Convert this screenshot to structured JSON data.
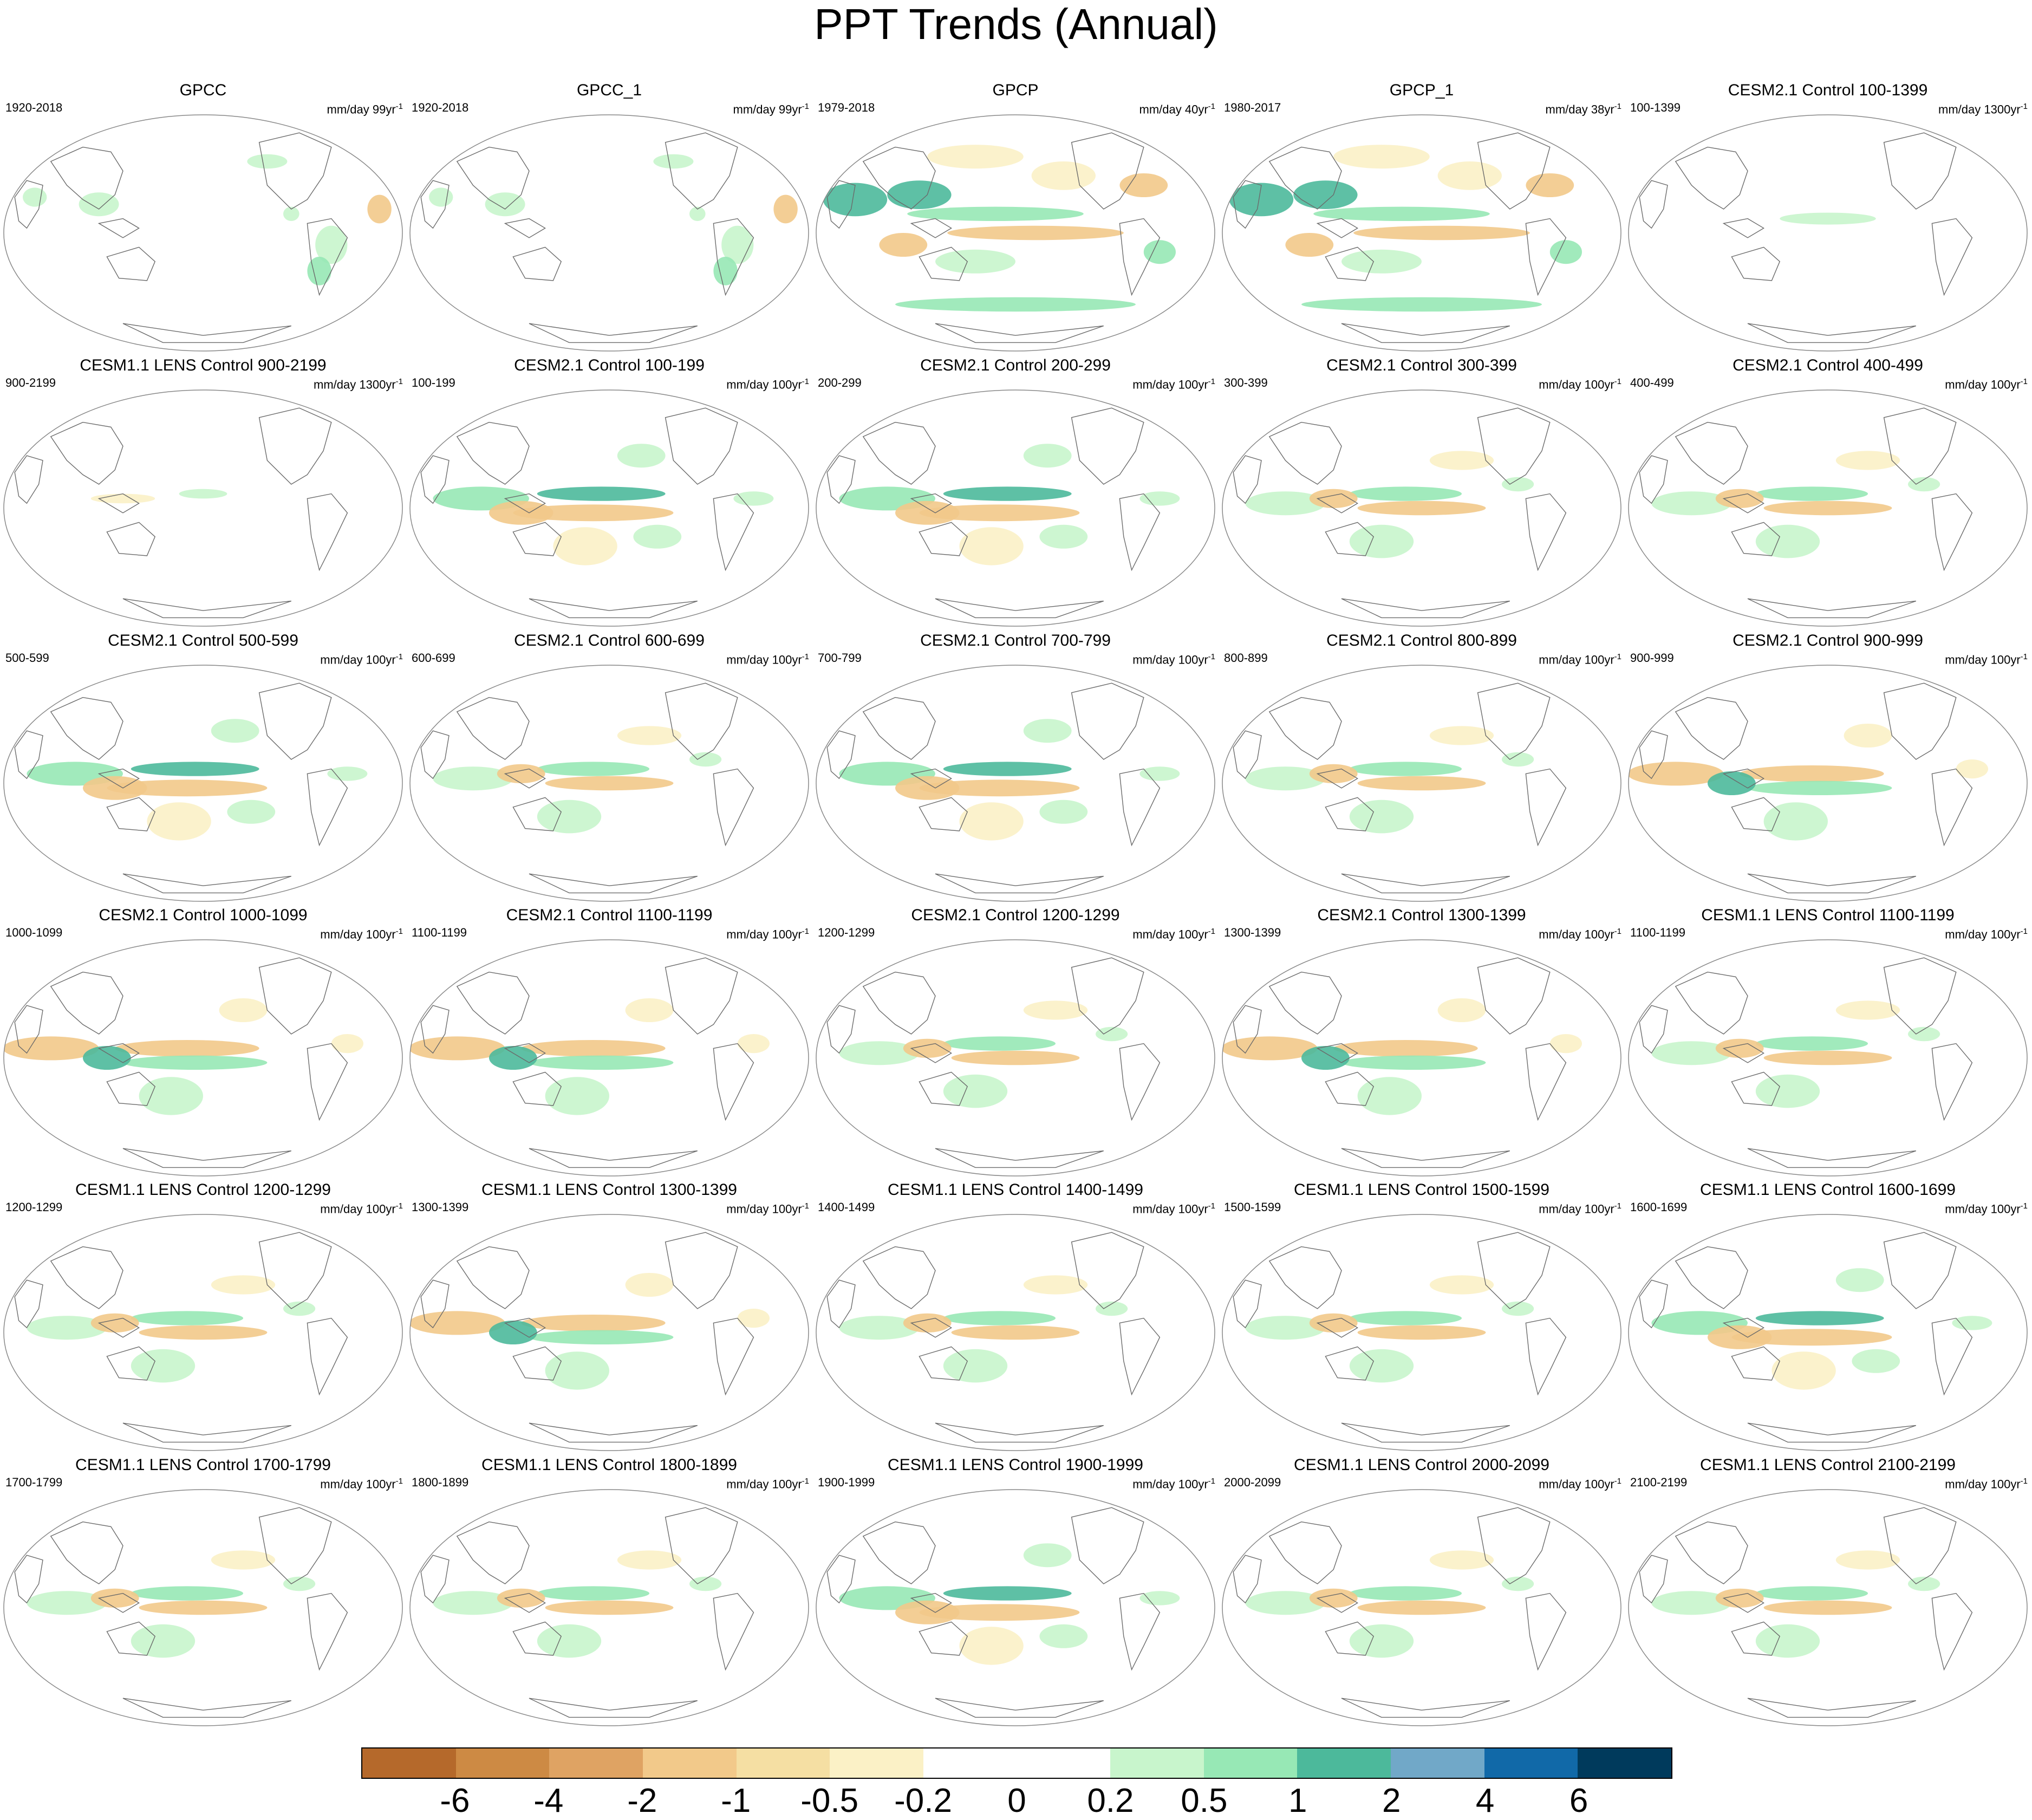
{
  "title": "PPT Trends (Annual)",
  "chart_data": {
    "type": "map-grid",
    "variable": "PPT Trends (Annual)",
    "panels": [
      {
        "title": "GPCC",
        "period": "1920-2018",
        "units": "mm/day 99yr",
        "units_exp": "-1",
        "pattern": "obs_sparse"
      },
      {
        "title": "GPCC_1",
        "period": "1920-2018",
        "units": "mm/day 99yr",
        "units_exp": "-1",
        "pattern": "obs_sparse"
      },
      {
        "title": "GPCP",
        "period": "1979-2018",
        "units": "mm/day 40yr",
        "units_exp": "-1",
        "pattern": "obs_strong"
      },
      {
        "title": "GPCP_1",
        "period": "1980-2017",
        "units": "mm/day 38yr",
        "units_exp": "-1",
        "pattern": "obs_strong"
      },
      {
        "title": "CESM2.1 Control 100-1399",
        "period": "100-1399",
        "units": "mm/day 1300yr",
        "units_exp": "-1",
        "pattern": "long_weak"
      },
      {
        "title": "CESM1.1 LENS Control 900-2199",
        "period": "900-2199",
        "units": "mm/day 1300yr",
        "units_exp": "-1",
        "pattern": "long_weaker"
      },
      {
        "title": "CESM2.1 Control 100-199",
        "period": "100-199",
        "units": "mm/day 100yr",
        "units_exp": "-1",
        "pattern": "enso_pos"
      },
      {
        "title": "CESM2.1 Control 200-299",
        "period": "200-299",
        "units": "mm/day 100yr",
        "units_exp": "-1",
        "pattern": "enso_pos"
      },
      {
        "title": "CESM2.1 Control 300-399",
        "period": "300-399",
        "units": "mm/day 100yr",
        "units_exp": "-1",
        "pattern": "mixed"
      },
      {
        "title": "CESM2.1 Control 400-499",
        "period": "400-499",
        "units": "mm/day 100yr",
        "units_exp": "-1",
        "pattern": "mixed"
      },
      {
        "title": "CESM2.1 Control 500-599",
        "period": "500-599",
        "units": "mm/day 100yr",
        "units_exp": "-1",
        "pattern": "enso_pos"
      },
      {
        "title": "CESM2.1 Control 600-699",
        "period": "600-699",
        "units": "mm/day 100yr",
        "units_exp": "-1",
        "pattern": "mixed"
      },
      {
        "title": "CESM2.1 Control 700-799",
        "period": "700-799",
        "units": "mm/day 100yr",
        "units_exp": "-1",
        "pattern": "enso_pos"
      },
      {
        "title": "CESM2.1 Control 800-899",
        "period": "800-899",
        "units": "mm/day 100yr",
        "units_exp": "-1",
        "pattern": "mixed"
      },
      {
        "title": "CESM2.1 Control 900-999",
        "period": "900-999",
        "units": "mm/day 100yr",
        "units_exp": "-1",
        "pattern": "enso_neg"
      },
      {
        "title": "CESM2.1 Control 1000-1099",
        "period": "1000-1099",
        "units": "mm/day 100yr",
        "units_exp": "-1",
        "pattern": "enso_neg"
      },
      {
        "title": "CESM2.1 Control 1100-1199",
        "period": "1100-1199",
        "units": "mm/day 100yr",
        "units_exp": "-1",
        "pattern": "enso_neg"
      },
      {
        "title": "CESM2.1 Control 1200-1299",
        "period": "1200-1299",
        "units": "mm/day 100yr",
        "units_exp": "-1",
        "pattern": "mixed"
      },
      {
        "title": "CESM2.1 Control 1300-1399",
        "period": "1300-1399",
        "units": "mm/day 100yr",
        "units_exp": "-1",
        "pattern": "enso_neg"
      },
      {
        "title": "CESM1.1 LENS Control 1100-1199",
        "period": "1100-1199",
        "units": "mm/day 100yr",
        "units_exp": "-1",
        "pattern": "mixed"
      },
      {
        "title": "CESM1.1 LENS Control 1200-1299",
        "period": "1200-1299",
        "units": "mm/day 100yr",
        "units_exp": "-1",
        "pattern": "mixed"
      },
      {
        "title": "CESM1.1 LENS Control 1300-1399",
        "period": "1300-1399",
        "units": "mm/day 100yr",
        "units_exp": "-1",
        "pattern": "enso_neg"
      },
      {
        "title": "CESM1.1 LENS Control 1400-1499",
        "period": "1400-1499",
        "units": "mm/day 100yr",
        "units_exp": "-1",
        "pattern": "mixed"
      },
      {
        "title": "CESM1.1 LENS Control 1500-1599",
        "period": "1500-1599",
        "units": "mm/day 100yr",
        "units_exp": "-1",
        "pattern": "mixed"
      },
      {
        "title": "CESM1.1 LENS Control 1600-1699",
        "period": "1600-1699",
        "units": "mm/day 100yr",
        "units_exp": "-1",
        "pattern": "enso_pos"
      },
      {
        "title": "CESM1.1 LENS Control 1700-1799",
        "period": "1700-1799",
        "units": "mm/day 100yr",
        "units_exp": "-1",
        "pattern": "mixed"
      },
      {
        "title": "CESM1.1 LENS Control 1800-1899",
        "period": "1800-1899",
        "units": "mm/day 100yr",
        "units_exp": "-1",
        "pattern": "mixed"
      },
      {
        "title": "CESM1.1 LENS Control 1900-1999",
        "period": "1900-1999",
        "units": "mm/day 100yr",
        "units_exp": "-1",
        "pattern": "enso_pos"
      },
      {
        "title": "CESM1.1 LENS Control 2000-2099",
        "period": "2000-2099",
        "units": "mm/day 100yr",
        "units_exp": "-1",
        "pattern": "mixed"
      },
      {
        "title": "CESM1.1 LENS Control 2100-2199",
        "period": "2100-2199",
        "units": "mm/day 100yr",
        "units_exp": "-1",
        "pattern": "mixed"
      }
    ],
    "colorbar": {
      "labels": [
        "-6",
        "-4",
        "-2",
        "-1",
        "-0.5",
        "-0.2",
        "0",
        "0.2",
        "0.5",
        "1",
        "2",
        "4",
        "6"
      ],
      "colors": [
        "#b5692b",
        "#cd8a44",
        "#dfa363",
        "#f2c98a",
        "#f5dfa3",
        "#fbf1c6",
        "#ffffff",
        "#ffffff",
        "#c8f5cc",
        "#97e8b5",
        "#4cb99b",
        "#71a8c8",
        "#1169a8",
        "#003a5c"
      ]
    }
  }
}
